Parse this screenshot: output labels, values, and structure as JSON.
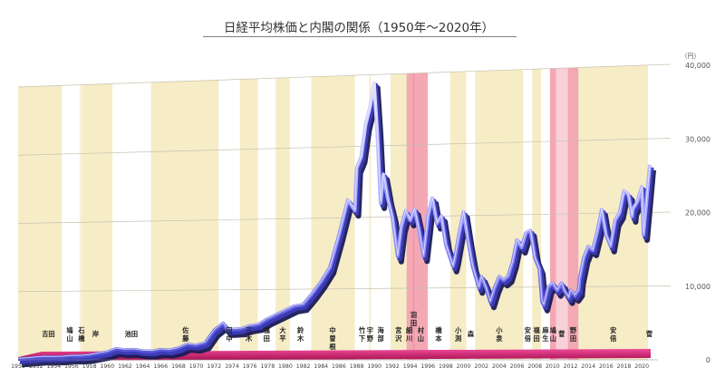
{
  "chart_data": {
    "type": "line",
    "title": "日経平均株価と内閣の関係（1950年〜2020年）",
    "unit_label": "（円）",
    "xlabel": "",
    "ylabel": "",
    "xlim": [
      1950,
      2021
    ],
    "ylim": [
      0,
      40000
    ],
    "y_ticks": [
      "0",
      "10,000",
      "20,000",
      "30,000",
      "40,000"
    ],
    "y_tick_values": [
      0,
      10000,
      20000,
      30000,
      40000
    ],
    "x_ticks": [
      "1950",
      "1952",
      "1954",
      "1956",
      "1958",
      "1960",
      "1962",
      "1964",
      "1966",
      "1968",
      "1970",
      "1972",
      "1974",
      "1976",
      "1978",
      "1980",
      "1982",
      "1984",
      "1986",
      "1988",
      "1990",
      "1992",
      "1994",
      "1996",
      "1998",
      "2000",
      "2002",
      "2004",
      "2006",
      "2008",
      "2010",
      "2012",
      "2014",
      "2016",
      "2018",
      "2020"
    ],
    "grid": true,
    "series": [
      {
        "values": [
          {
            "x": 1950.0,
            "y": 100
          },
          {
            "x": 1951.0,
            "y": 160
          },
          {
            "x": 1952.0,
            "y": 290
          },
          {
            "x": 1953.0,
            "y": 380
          },
          {
            "x": 1954.0,
            "y": 360
          },
          {
            "x": 1955.0,
            "y": 400
          },
          {
            "x": 1956.0,
            "y": 520
          },
          {
            "x": 1957.0,
            "y": 520
          },
          {
            "x": 1958.0,
            "y": 620
          },
          {
            "x": 1959.0,
            "y": 870
          },
          {
            "x": 1960.0,
            "y": 1100
          },
          {
            "x": 1961.0,
            "y": 1580
          },
          {
            "x": 1962.0,
            "y": 1400
          },
          {
            "x": 1963.0,
            "y": 1450
          },
          {
            "x": 1964.0,
            "y": 1250
          },
          {
            "x": 1965.0,
            "y": 1200
          },
          {
            "x": 1966.0,
            "y": 1450
          },
          {
            "x": 1967.0,
            "y": 1350
          },
          {
            "x": 1968.0,
            "y": 1650
          },
          {
            "x": 1969.0,
            "y": 2200
          },
          {
            "x": 1970.0,
            "y": 2050
          },
          {
            "x": 1971.0,
            "y": 2400
          },
          {
            "x": 1972.0,
            "y": 4200
          },
          {
            "x": 1973.0,
            "y": 5200
          },
          {
            "x": 1973.5,
            "y": 4300
          },
          {
            "x": 1974.0,
            "y": 4300
          },
          {
            "x": 1975.0,
            "y": 4400
          },
          {
            "x": 1976.0,
            "y": 4800
          },
          {
            "x": 1977.0,
            "y": 5000
          },
          {
            "x": 1978.0,
            "y": 5800
          },
          {
            "x": 1979.0,
            "y": 6400
          },
          {
            "x": 1980.0,
            "y": 7000
          },
          {
            "x": 1981.0,
            "y": 7600
          },
          {
            "x": 1982.0,
            "y": 7800
          },
          {
            "x": 1983.0,
            "y": 9300
          },
          {
            "x": 1984.0,
            "y": 11000
          },
          {
            "x": 1985.0,
            "y": 13000
          },
          {
            "x": 1986.0,
            "y": 17500
          },
          {
            "x": 1987.0,
            "y": 22500
          },
          {
            "x": 1987.8,
            "y": 21000
          },
          {
            "x": 1988.0,
            "y": 27000
          },
          {
            "x": 1988.5,
            "y": 28500
          },
          {
            "x": 1989.0,
            "y": 33000
          },
          {
            "x": 1989.5,
            "y": 35500
          },
          {
            "x": 1989.95,
            "y": 38900
          },
          {
            "x": 1990.3,
            "y": 32000
          },
          {
            "x": 1990.7,
            "y": 22000
          },
          {
            "x": 1991.0,
            "y": 26000
          },
          {
            "x": 1991.5,
            "y": 22500
          },
          {
            "x": 1992.0,
            "y": 20000
          },
          {
            "x": 1992.6,
            "y": 14500
          },
          {
            "x": 1993.0,
            "y": 18500
          },
          {
            "x": 1993.5,
            "y": 20800
          },
          {
            "x": 1994.0,
            "y": 19500
          },
          {
            "x": 1994.5,
            "y": 21000
          },
          {
            "x": 1995.0,
            "y": 18000
          },
          {
            "x": 1995.5,
            "y": 14500
          },
          {
            "x": 1996.0,
            "y": 20000
          },
          {
            "x": 1996.5,
            "y": 22500
          },
          {
            "x": 1997.0,
            "y": 19000
          },
          {
            "x": 1997.5,
            "y": 20000
          },
          {
            "x": 1998.0,
            "y": 16000
          },
          {
            "x": 1998.8,
            "y": 13000
          },
          {
            "x": 1999.0,
            "y": 14000
          },
          {
            "x": 1999.5,
            "y": 17500
          },
          {
            "x": 2000.0,
            "y": 20500
          },
          {
            "x": 2000.5,
            "y": 16500
          },
          {
            "x": 2001.0,
            "y": 13000
          },
          {
            "x": 2001.7,
            "y": 10000
          },
          {
            "x": 2002.0,
            "y": 11500
          },
          {
            "x": 2002.5,
            "y": 10000
          },
          {
            "x": 2003.0,
            "y": 8000
          },
          {
            "x": 2003.5,
            "y": 10000
          },
          {
            "x": 2004.0,
            "y": 11500
          },
          {
            "x": 2004.5,
            "y": 11000
          },
          {
            "x": 2005.0,
            "y": 11500
          },
          {
            "x": 2005.5,
            "y": 13500
          },
          {
            "x": 2006.0,
            "y": 16500
          },
          {
            "x": 2006.5,
            "y": 15500
          },
          {
            "x": 2007.0,
            "y": 17500
          },
          {
            "x": 2007.5,
            "y": 17800
          },
          {
            "x": 2008.0,
            "y": 14000
          },
          {
            "x": 2008.5,
            "y": 12500
          },
          {
            "x": 2008.8,
            "y": 8000
          },
          {
            "x": 2009.0,
            "y": 7500
          },
          {
            "x": 2009.5,
            "y": 10000
          },
          {
            "x": 2010.0,
            "y": 10500
          },
          {
            "x": 2010.5,
            "y": 9500
          },
          {
            "x": 2011.0,
            "y": 10500
          },
          {
            "x": 2011.3,
            "y": 9500
          },
          {
            "x": 2011.8,
            "y": 8500
          },
          {
            "x": 2012.0,
            "y": 9500
          },
          {
            "x": 2012.5,
            "y": 8800
          },
          {
            "x": 2012.9,
            "y": 9500
          },
          {
            "x": 2013.0,
            "y": 11000
          },
          {
            "x": 2013.5,
            "y": 14000
          },
          {
            "x": 2014.0,
            "y": 15500
          },
          {
            "x": 2014.5,
            "y": 15000
          },
          {
            "x": 2015.0,
            "y": 17500
          },
          {
            "x": 2015.5,
            "y": 20500
          },
          {
            "x": 2016.0,
            "y": 17000
          },
          {
            "x": 2016.5,
            "y": 15500
          },
          {
            "x": 2017.0,
            "y": 19000
          },
          {
            "x": 2017.5,
            "y": 20000
          },
          {
            "x": 2018.0,
            "y": 23000
          },
          {
            "x": 2018.5,
            "y": 22500
          },
          {
            "x": 2018.9,
            "y": 19500
          },
          {
            "x": 2019.0,
            "y": 20500
          },
          {
            "x": 2019.5,
            "y": 21500
          },
          {
            "x": 2020.0,
            "y": 23500
          },
          {
            "x": 2020.2,
            "y": 17000
          },
          {
            "x": 2020.6,
            "y": 22500
          },
          {
            "x": 2020.9,
            "y": 26500
          }
        ]
      }
    ],
    "pm_periods": [
      {
        "label": "吉田",
        "start": 1950.0,
        "end": 1954.9,
        "color": "#f6ecc6"
      },
      {
        "label": "鳩山",
        "start": 1954.9,
        "end": 1956.9,
        "color": "#ffffff"
      },
      {
        "label": "石橋",
        "start": 1956.9,
        "end": 1957.2,
        "color": "#f8f0da"
      },
      {
        "label": "岸",
        "start": 1957.2,
        "end": 1960.6,
        "color": "#f6ecc6"
      },
      {
        "label": "池田",
        "start": 1960.6,
        "end": 1964.9,
        "color": "#ffffff"
      },
      {
        "label": "佐藤",
        "start": 1964.9,
        "end": 1972.5,
        "color": "#f6ecc6"
      },
      {
        "label": "田中",
        "start": 1972.5,
        "end": 1974.9,
        "color": "#ffffff"
      },
      {
        "label": "三木",
        "start": 1974.9,
        "end": 1976.9,
        "color": "#f6ecc6"
      },
      {
        "label": "福田",
        "start": 1976.9,
        "end": 1978.9,
        "color": "#ffffff"
      },
      {
        "label": "大平",
        "start": 1978.9,
        "end": 1980.5,
        "color": "#f6ecc6"
      },
      {
        "label": "鈴木",
        "start": 1980.5,
        "end": 1982.9,
        "color": "#ffffff"
      },
      {
        "label": "中曽根",
        "start": 1982.9,
        "end": 1987.8,
        "color": "#f6ecc6"
      },
      {
        "label": "竹下",
        "start": 1987.8,
        "end": 1989.4,
        "color": "#ffffff"
      },
      {
        "label": "宇野",
        "start": 1989.4,
        "end": 1989.6,
        "color": "#f6ecc6"
      },
      {
        "label": "海部",
        "start": 1989.6,
        "end": 1991.8,
        "color": "#ffffff"
      },
      {
        "label": "宮沢",
        "start": 1991.8,
        "end": 1993.6,
        "color": "#f6ecc6"
      },
      {
        "label": "細川",
        "start": 1993.6,
        "end": 1994.3,
        "color": "#f4a8b4"
      },
      {
        "label": "羽田",
        "start": 1994.3,
        "end": 1994.5,
        "color": "#ef97a6"
      },
      {
        "label": "村山",
        "start": 1994.5,
        "end": 1996.0,
        "color": "#f4a8b4"
      },
      {
        "label": "橋本",
        "start": 1996.0,
        "end": 1998.5,
        "color": "#ffffff"
      },
      {
        "label": "小渕",
        "start": 1998.5,
        "end": 2000.3,
        "color": "#f6ecc6"
      },
      {
        "label": "森",
        "start": 2000.3,
        "end": 2001.3,
        "color": "#ffffff"
      },
      {
        "label": "小泉",
        "start": 2001.3,
        "end": 2006.7,
        "color": "#f6ecc6"
      },
      {
        "label": "安倍",
        "start": 2006.7,
        "end": 2007.7,
        "color": "#ffffff"
      },
      {
        "label": "福田",
        "start": 2007.7,
        "end": 2008.7,
        "color": "#f6ecc6"
      },
      {
        "label": "麻生",
        "start": 2008.7,
        "end": 2009.7,
        "color": "#ffffff"
      },
      {
        "label": "鳩山",
        "start": 2009.7,
        "end": 2010.4,
        "color": "#f4a8b4"
      },
      {
        "label": "菅",
        "start": 2010.4,
        "end": 2011.7,
        "color": "#f8d0d8"
      },
      {
        "label": "野田",
        "start": 2011.7,
        "end": 2012.9,
        "color": "#f4a8b4"
      },
      {
        "label": "安倍",
        "start": 2012.9,
        "end": 2020.7,
        "color": "#f6ecc6"
      },
      {
        "label": "菅",
        "start": 2020.7,
        "end": 2021.0,
        "color": "#ffffff"
      }
    ],
    "pm_label_positions": [
      {
        "label": "吉田",
        "x": 1953.4,
        "stack": false
      },
      {
        "label": "鳩山",
        "x": 1955.8,
        "stack": true
      },
      {
        "label": "石橋",
        "x": 1957.1,
        "stack": true
      },
      {
        "label": "岸",
        "x": 1958.7,
        "stack": false
      },
      {
        "label": "池田",
        "x": 1962.7,
        "stack": false
      },
      {
        "label": "佐藤",
        "x": 1968.8,
        "stack": true
      },
      {
        "label": "田中",
        "x": 1973.7,
        "stack": true
      },
      {
        "label": "三木",
        "x": 1975.9,
        "stack": true
      },
      {
        "label": "福田",
        "x": 1977.9,
        "stack": true
      },
      {
        "label": "大平",
        "x": 1979.7,
        "stack": true
      },
      {
        "label": "鈴木",
        "x": 1981.7,
        "stack": true
      },
      {
        "label": "中曽根",
        "x": 1985.3,
        "stack": true
      },
      {
        "label": "竹下",
        "x": 1988.6,
        "stack": true
      },
      {
        "label": "宇野",
        "x": 1989.5,
        "stack": true
      },
      {
        "label": "海部",
        "x": 1990.7,
        "stack": true
      },
      {
        "label": "宮沢",
        "x": 1992.7,
        "stack": true
      },
      {
        "label": "細川",
        "x": 1993.9,
        "stack": true
      },
      {
        "label": "羽田",
        "x": 1994.4,
        "stack": true,
        "raised": true
      },
      {
        "label": "村山",
        "x": 1995.2,
        "stack": true
      },
      {
        "label": "橋本",
        "x": 1997.2,
        "stack": true
      },
      {
        "label": "小渕",
        "x": 1999.4,
        "stack": true
      },
      {
        "label": "森",
        "x": 2000.8,
        "stack": false
      },
      {
        "label": "小泉",
        "x": 2004.0,
        "stack": true
      },
      {
        "label": "安倍",
        "x": 2007.2,
        "stack": true
      },
      {
        "label": "福田",
        "x": 2008.2,
        "stack": true
      },
      {
        "label": "麻生",
        "x": 2009.2,
        "stack": true
      },
      {
        "label": "鳩山",
        "x": 2010.05,
        "stack": true
      },
      {
        "label": "菅",
        "x": 2011.0,
        "stack": true
      },
      {
        "label": "野田",
        "x": 2012.3,
        "stack": true
      },
      {
        "label": "安倍",
        "x": 2016.8,
        "stack": true
      },
      {
        "label": "菅",
        "x": 2020.85,
        "stack": true
      }
    ]
  }
}
